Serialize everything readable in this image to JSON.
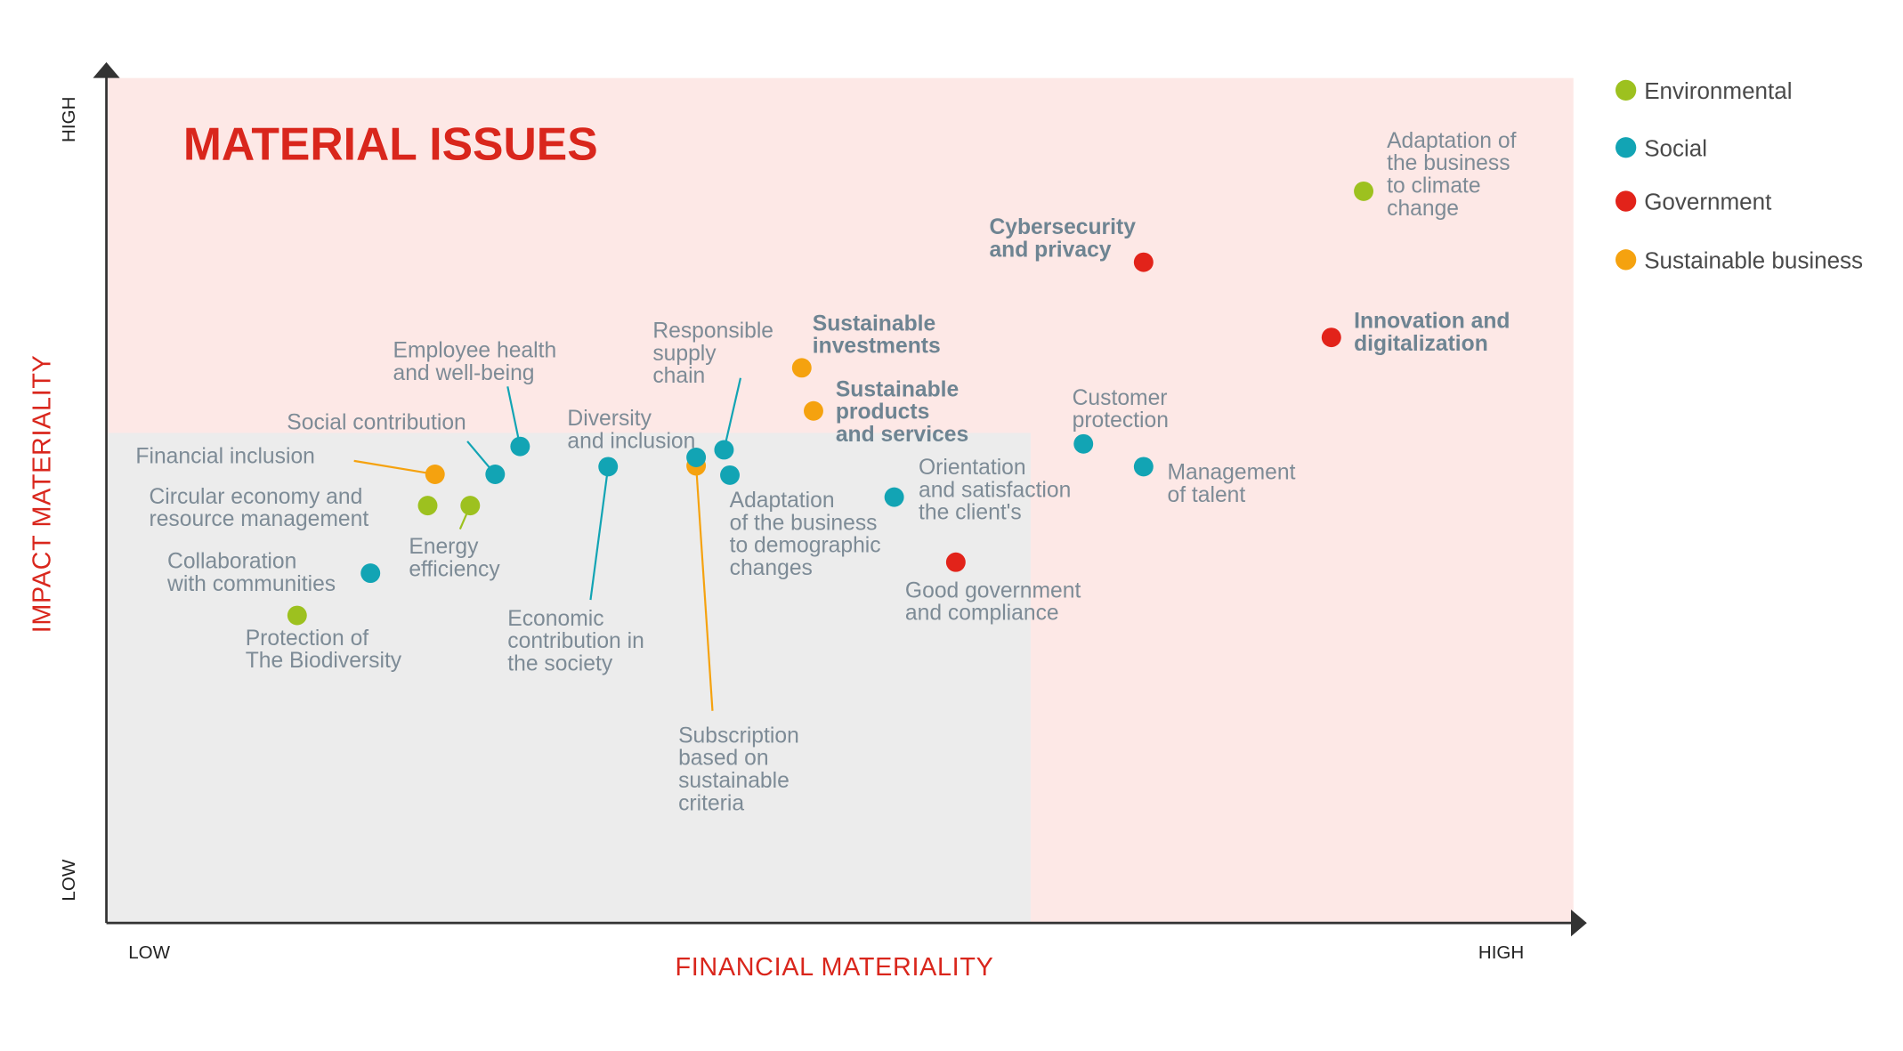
{
  "chart_data": {
    "type": "scatter",
    "title": "MATERIAL ISSUES",
    "xlabel": "FINANCIAL MATERIALITY",
    "ylabel": "IMPACT MATERIALITY",
    "x_tick_labels": [
      "LOW",
      "HIGH"
    ],
    "y_tick_labels": [
      "LOW",
      "HIGH"
    ],
    "xlim": [
      0,
      100
    ],
    "ylim": [
      0,
      100
    ],
    "grid": false,
    "legend_placement": "right",
    "background_regions": [
      {
        "name": "low-materiality",
        "x": [
          0,
          63
        ],
        "y": [
          0,
          58
        ],
        "color": "#ececec"
      },
      {
        "name": "high-materiality",
        "x": [
          0,
          100
        ],
        "y": [
          0,
          100
        ],
        "color": "#fde8e6"
      }
    ],
    "categories": [
      {
        "key": "env",
        "name": "Environmental",
        "color": "#9dc11f"
      },
      {
        "key": "soc",
        "name": "Social",
        "color": "#12a4b4"
      },
      {
        "key": "gov",
        "name": "Government",
        "color": "#e2231a"
      },
      {
        "key": "sb",
        "name": "Sustainable business",
        "color": "#f5a20f"
      }
    ],
    "points": [
      {
        "label": [
          "Adaptation of",
          "the business",
          "to climate",
          "change"
        ],
        "category": "env",
        "x": 85.7,
        "y": 86.6,
        "bold": false
      },
      {
        "label": [
          "Cybersecurity",
          "and privacy"
        ],
        "category": "gov",
        "x": 70.7,
        "y": 78.2,
        "bold": true
      },
      {
        "label": [
          "Innovation and",
          "digitalization"
        ],
        "category": "gov",
        "x": 83.5,
        "y": 69.3,
        "bold": true
      },
      {
        "label": [
          "Sustainable",
          "investments"
        ],
        "category": "sb",
        "x": 47.4,
        "y": 65.7,
        "bold": true
      },
      {
        "label": [
          "Sustainable",
          "products",
          "and services"
        ],
        "category": "sb",
        "x": 48.2,
        "y": 60.6,
        "bold": true
      },
      {
        "label": [
          "Customer",
          "protection"
        ],
        "category": "soc",
        "x": 66.6,
        "y": 56.7,
        "bold": false
      },
      {
        "label": [
          "Management",
          "of talent"
        ],
        "category": "soc",
        "x": 70.7,
        "y": 54.0,
        "bold": false
      },
      {
        "label": [
          "Orientation",
          "and satisfaction",
          "the client's"
        ],
        "category": "soc",
        "x": 53.7,
        "y": 50.4,
        "bold": false
      },
      {
        "label": [
          "Good government",
          "and compliance"
        ],
        "category": "gov",
        "x": 57.9,
        "y": 42.7,
        "bold": false
      },
      {
        "label": [
          "Responsible",
          "supply",
          "chain"
        ],
        "category": "soc",
        "x": 42.1,
        "y": 56.0,
        "bold": false
      },
      {
        "label": [
          "Subscription",
          "based on",
          "sustainable",
          "criteria"
        ],
        "category": "sb",
        "x": 40.2,
        "y": 54.1,
        "bold": false
      },
      {
        "label": [
          "Diversity",
          "and inclusion"
        ],
        "category": "soc",
        "x": 40.2,
        "y": 55.1,
        "bold": false
      },
      {
        "label": [
          "Adaptation",
          "of the business",
          "to demographic",
          "changes"
        ],
        "category": "soc",
        "x": 42.5,
        "y": 53.0,
        "bold": false
      },
      {
        "label": [
          "Economic",
          "contribution in",
          "the society"
        ],
        "category": "soc",
        "x": 34.2,
        "y": 54.0,
        "bold": false
      },
      {
        "label": [
          "Employee health",
          "and well-being"
        ],
        "category": "soc",
        "x": 28.2,
        "y": 56.4,
        "bold": false
      },
      {
        "label": [
          "Social contribution"
        ],
        "category": "soc",
        "x": 26.5,
        "y": 53.1,
        "bold": false
      },
      {
        "label": [
          "Financial inclusion"
        ],
        "category": "sb",
        "x": 22.4,
        "y": 53.1,
        "bold": false
      },
      {
        "label": [
          "Circular economy and",
          "resource management"
        ],
        "category": "env",
        "x": 21.9,
        "y": 49.4,
        "bold": false
      },
      {
        "label": [
          "Energy",
          "efficiency"
        ],
        "category": "env",
        "x": 24.8,
        "y": 49.4,
        "bold": false
      },
      {
        "label": [
          "Collaboration",
          "with communities"
        ],
        "category": "soc",
        "x": 18.0,
        "y": 41.4,
        "bold": false
      },
      {
        "label": [
          "Protection of",
          "The Biodiversity"
        ],
        "category": "env",
        "x": 13.0,
        "y": 36.4,
        "bold": false
      }
    ]
  }
}
